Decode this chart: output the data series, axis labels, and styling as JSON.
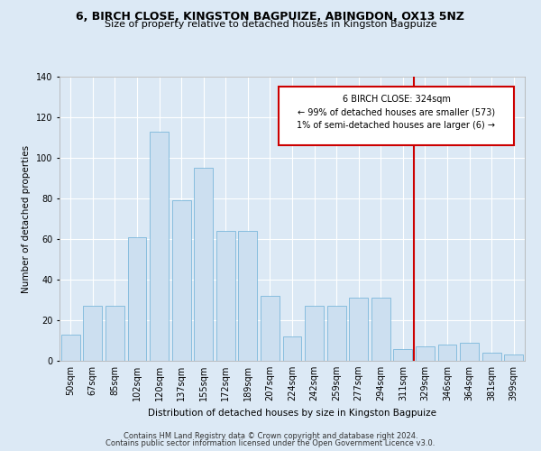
{
  "title": "6, BIRCH CLOSE, KINGSTON BAGPUIZE, ABINGDON, OX13 5NZ",
  "subtitle": "Size of property relative to detached houses in Kingston Bagpuize",
  "xlabel": "Distribution of detached houses by size in Kingston Bagpuize",
  "ylabel": "Number of detached properties",
  "bar_labels": [
    "50sqm",
    "67sqm",
    "85sqm",
    "102sqm",
    "120sqm",
    "137sqm",
    "155sqm",
    "172sqm",
    "189sqm",
    "207sqm",
    "224sqm",
    "242sqm",
    "259sqm",
    "277sqm",
    "294sqm",
    "311sqm",
    "329sqm",
    "346sqm",
    "364sqm",
    "381sqm",
    "399sqm"
  ],
  "bar_values": [
    13,
    27,
    27,
    61,
    113,
    79,
    95,
    64,
    64,
    32,
    12,
    27,
    27,
    31,
    31,
    6,
    7,
    8,
    9,
    4,
    3
  ],
  "bar_color": "#ccdff0",
  "bar_edge_color": "#6aafd6",
  "vline_color": "#cc0000",
  "annotation_line1": "6 BIRCH CLOSE: 324sqm",
  "annotation_line2": "← 99% of detached houses are smaller (573)",
  "annotation_line3": "1% of semi-detached houses are larger (6) →",
  "annotation_box_color": "#cc0000",
  "ylim": [
    0,
    140
  ],
  "yticks": [
    0,
    20,
    40,
    60,
    80,
    100,
    120,
    140
  ],
  "footer_line1": "Contains HM Land Registry data © Crown copyright and database right 2024.",
  "footer_line2": "Contains public sector information licensed under the Open Government Licence v3.0.",
  "background_color": "#dce9f5",
  "title_fontsize": 9,
  "subtitle_fontsize": 8,
  "axis_label_fontsize": 7.5,
  "tick_fontsize": 7,
  "footer_fontsize": 6
}
